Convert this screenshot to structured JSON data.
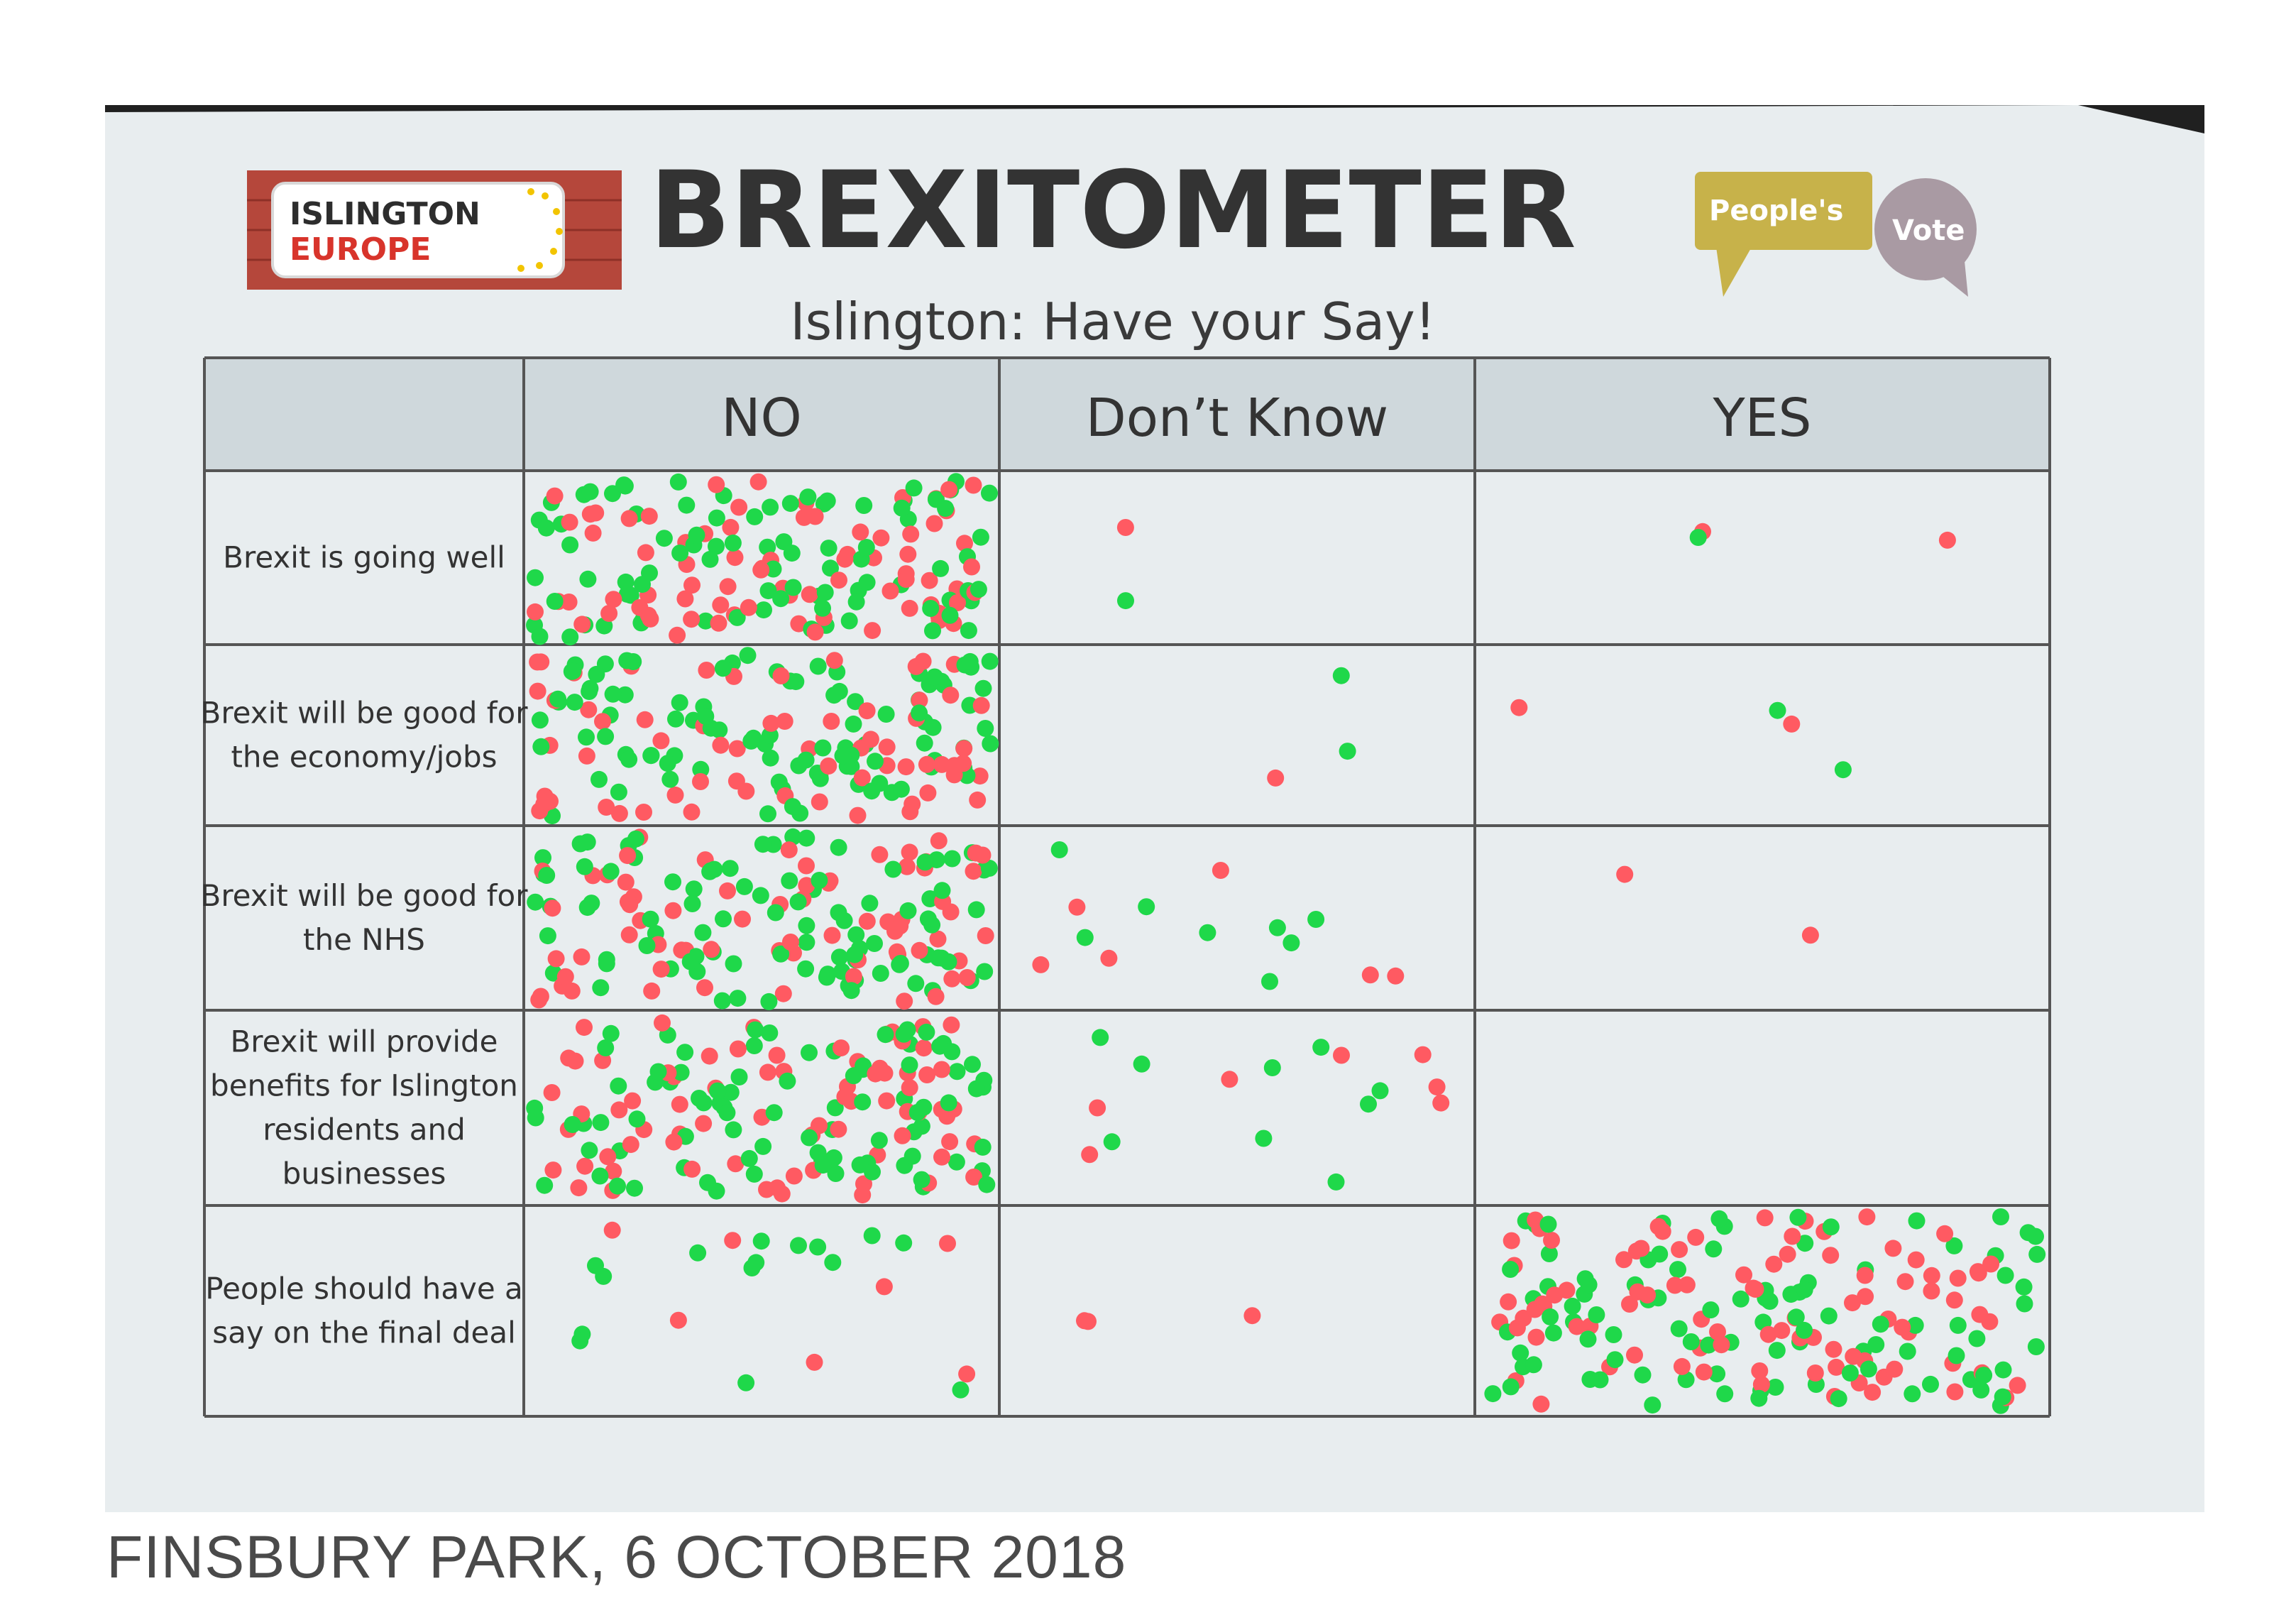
{
  "board": {
    "title": "BREXITOMETER",
    "subtitle": "Islington: Have your Say!"
  },
  "logos": {
    "islington_line1": "ISLINGTON",
    "islington_line2": "EUROPE",
    "peoples": "People's",
    "vote": "Vote"
  },
  "columns": [
    "NO",
    "Don’t Know",
    "YES"
  ],
  "rows": [
    {
      "lines": [
        "Brexit is going well"
      ]
    },
    {
      "lines": [
        "Brexit will be good for",
        "the economy/jobs"
      ]
    },
    {
      "lines": [
        "Brexit will be good for",
        "the NHS"
      ]
    },
    {
      "lines": [
        "Brexit will provide",
        "benefits for Islington",
        "residents and",
        "businesses"
      ]
    },
    {
      "lines": [
        "People should have a",
        "say on the final deal"
      ]
    }
  ],
  "caption": "FINSBURY PARK, 6 OCTOBER 2018",
  "colors": {
    "green_dot": "#1fd84a",
    "red_dot": "#ff5a62",
    "board": "#e9eef0",
    "header": "#cfd8dc",
    "brick": "#b8463a"
  }
}
